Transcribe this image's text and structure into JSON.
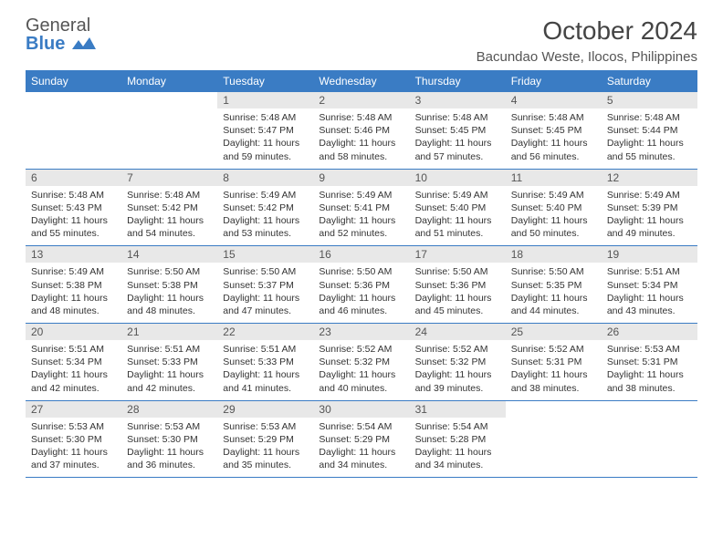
{
  "brand": {
    "word1": "General",
    "word2": "Blue"
  },
  "title": "October 2024",
  "location": "Bacundao Weste, Ilocos, Philippines",
  "colors": {
    "header_bg": "#3a7cc4",
    "header_text": "#ffffff",
    "daynum_bg": "#e8e8e8",
    "border": "#3a7cc4",
    "body_text": "#333333"
  },
  "day_headers": [
    "Sunday",
    "Monday",
    "Tuesday",
    "Wednesday",
    "Thursday",
    "Friday",
    "Saturday"
  ],
  "weeks": [
    [
      null,
      null,
      {
        "n": "1",
        "sunrise": "5:48 AM",
        "sunset": "5:47 PM",
        "daylight": "11 hours and 59 minutes."
      },
      {
        "n": "2",
        "sunrise": "5:48 AM",
        "sunset": "5:46 PM",
        "daylight": "11 hours and 58 minutes."
      },
      {
        "n": "3",
        "sunrise": "5:48 AM",
        "sunset": "5:45 PM",
        "daylight": "11 hours and 57 minutes."
      },
      {
        "n": "4",
        "sunrise": "5:48 AM",
        "sunset": "5:45 PM",
        "daylight": "11 hours and 56 minutes."
      },
      {
        "n": "5",
        "sunrise": "5:48 AM",
        "sunset": "5:44 PM",
        "daylight": "11 hours and 55 minutes."
      }
    ],
    [
      {
        "n": "6",
        "sunrise": "5:48 AM",
        "sunset": "5:43 PM",
        "daylight": "11 hours and 55 minutes."
      },
      {
        "n": "7",
        "sunrise": "5:48 AM",
        "sunset": "5:42 PM",
        "daylight": "11 hours and 54 minutes."
      },
      {
        "n": "8",
        "sunrise": "5:49 AM",
        "sunset": "5:42 PM",
        "daylight": "11 hours and 53 minutes."
      },
      {
        "n": "9",
        "sunrise": "5:49 AM",
        "sunset": "5:41 PM",
        "daylight": "11 hours and 52 minutes."
      },
      {
        "n": "10",
        "sunrise": "5:49 AM",
        "sunset": "5:40 PM",
        "daylight": "11 hours and 51 minutes."
      },
      {
        "n": "11",
        "sunrise": "5:49 AM",
        "sunset": "5:40 PM",
        "daylight": "11 hours and 50 minutes."
      },
      {
        "n": "12",
        "sunrise": "5:49 AM",
        "sunset": "5:39 PM",
        "daylight": "11 hours and 49 minutes."
      }
    ],
    [
      {
        "n": "13",
        "sunrise": "5:49 AM",
        "sunset": "5:38 PM",
        "daylight": "11 hours and 48 minutes."
      },
      {
        "n": "14",
        "sunrise": "5:50 AM",
        "sunset": "5:38 PM",
        "daylight": "11 hours and 48 minutes."
      },
      {
        "n": "15",
        "sunrise": "5:50 AM",
        "sunset": "5:37 PM",
        "daylight": "11 hours and 47 minutes."
      },
      {
        "n": "16",
        "sunrise": "5:50 AM",
        "sunset": "5:36 PM",
        "daylight": "11 hours and 46 minutes."
      },
      {
        "n": "17",
        "sunrise": "5:50 AM",
        "sunset": "5:36 PM",
        "daylight": "11 hours and 45 minutes."
      },
      {
        "n": "18",
        "sunrise": "5:50 AM",
        "sunset": "5:35 PM",
        "daylight": "11 hours and 44 minutes."
      },
      {
        "n": "19",
        "sunrise": "5:51 AM",
        "sunset": "5:34 PM",
        "daylight": "11 hours and 43 minutes."
      }
    ],
    [
      {
        "n": "20",
        "sunrise": "5:51 AM",
        "sunset": "5:34 PM",
        "daylight": "11 hours and 42 minutes."
      },
      {
        "n": "21",
        "sunrise": "5:51 AM",
        "sunset": "5:33 PM",
        "daylight": "11 hours and 42 minutes."
      },
      {
        "n": "22",
        "sunrise": "5:51 AM",
        "sunset": "5:33 PM",
        "daylight": "11 hours and 41 minutes."
      },
      {
        "n": "23",
        "sunrise": "5:52 AM",
        "sunset": "5:32 PM",
        "daylight": "11 hours and 40 minutes."
      },
      {
        "n": "24",
        "sunrise": "5:52 AM",
        "sunset": "5:32 PM",
        "daylight": "11 hours and 39 minutes."
      },
      {
        "n": "25",
        "sunrise": "5:52 AM",
        "sunset": "5:31 PM",
        "daylight": "11 hours and 38 minutes."
      },
      {
        "n": "26",
        "sunrise": "5:53 AM",
        "sunset": "5:31 PM",
        "daylight": "11 hours and 38 minutes."
      }
    ],
    [
      {
        "n": "27",
        "sunrise": "5:53 AM",
        "sunset": "5:30 PM",
        "daylight": "11 hours and 37 minutes."
      },
      {
        "n": "28",
        "sunrise": "5:53 AM",
        "sunset": "5:30 PM",
        "daylight": "11 hours and 36 minutes."
      },
      {
        "n": "29",
        "sunrise": "5:53 AM",
        "sunset": "5:29 PM",
        "daylight": "11 hours and 35 minutes."
      },
      {
        "n": "30",
        "sunrise": "5:54 AM",
        "sunset": "5:29 PM",
        "daylight": "11 hours and 34 minutes."
      },
      {
        "n": "31",
        "sunrise": "5:54 AM",
        "sunset": "5:28 PM",
        "daylight": "11 hours and 34 minutes."
      },
      null,
      null
    ]
  ],
  "labels": {
    "sunrise": "Sunrise:",
    "sunset": "Sunset:",
    "daylight": "Daylight:"
  }
}
